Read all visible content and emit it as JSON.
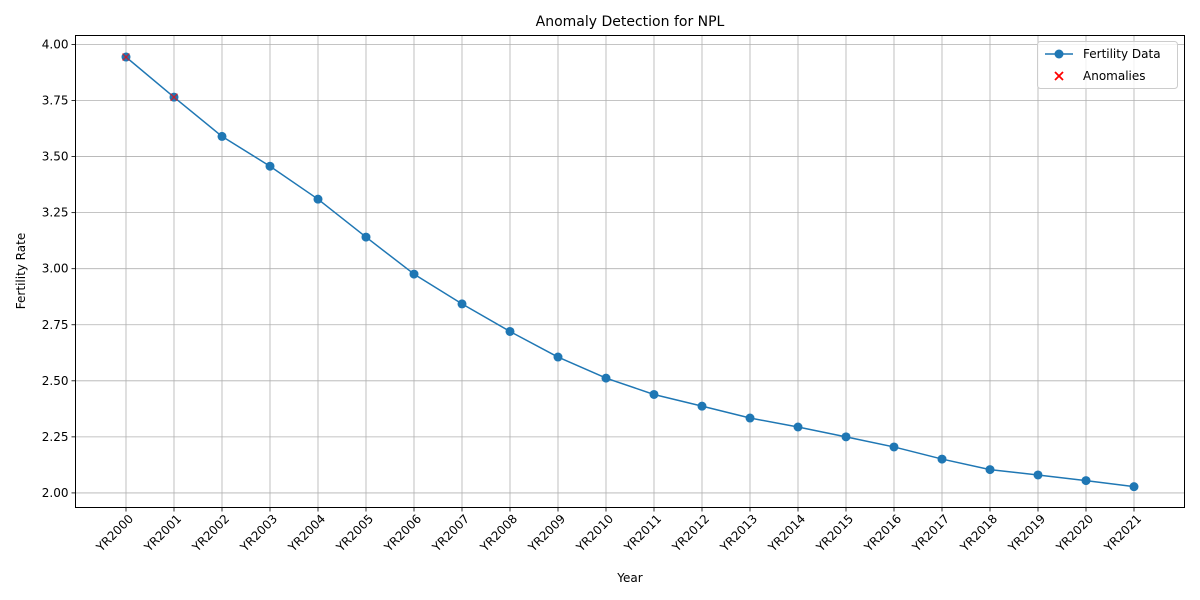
{
  "chart_data": {
    "type": "line",
    "title": "Anomaly Detection for NPL",
    "xlabel": "Year",
    "ylabel": "Fertility Rate",
    "categories": [
      "YR2000",
      "YR2001",
      "YR2002",
      "YR2003",
      "YR2004",
      "YR2005",
      "YR2006",
      "YR2007",
      "YR2008",
      "YR2009",
      "YR2010",
      "YR2011",
      "YR2012",
      "YR2013",
      "YR2014",
      "YR2015",
      "YR2016",
      "YR2017",
      "YR2018",
      "YR2019",
      "YR2020",
      "YR2021"
    ],
    "series": [
      {
        "name": "Fertility Data",
        "color": "#1f77b4",
        "marker": "circle",
        "values": [
          3.944,
          3.765,
          3.59,
          3.457,
          3.31,
          3.141,
          2.976,
          2.843,
          2.72,
          2.606,
          2.512,
          2.439,
          2.387,
          2.334,
          2.294,
          2.25,
          2.205,
          2.151,
          2.104,
          2.08,
          2.055,
          2.028
        ]
      }
    ],
    "anomalies": {
      "name": "Anomalies",
      "color": "#ff0000",
      "marker": "x",
      "points": [
        {
          "x": "YR2000",
          "y": 3.944
        },
        {
          "x": "YR2001",
          "y": 3.765
        }
      ]
    },
    "yticks": [
      "2.00",
      "2.25",
      "2.50",
      "2.75",
      "3.00",
      "3.25",
      "3.50",
      "3.75",
      "4.00"
    ],
    "ylim": [
      1.935,
      4.04
    ],
    "grid": true,
    "legend_position": "top-right"
  }
}
